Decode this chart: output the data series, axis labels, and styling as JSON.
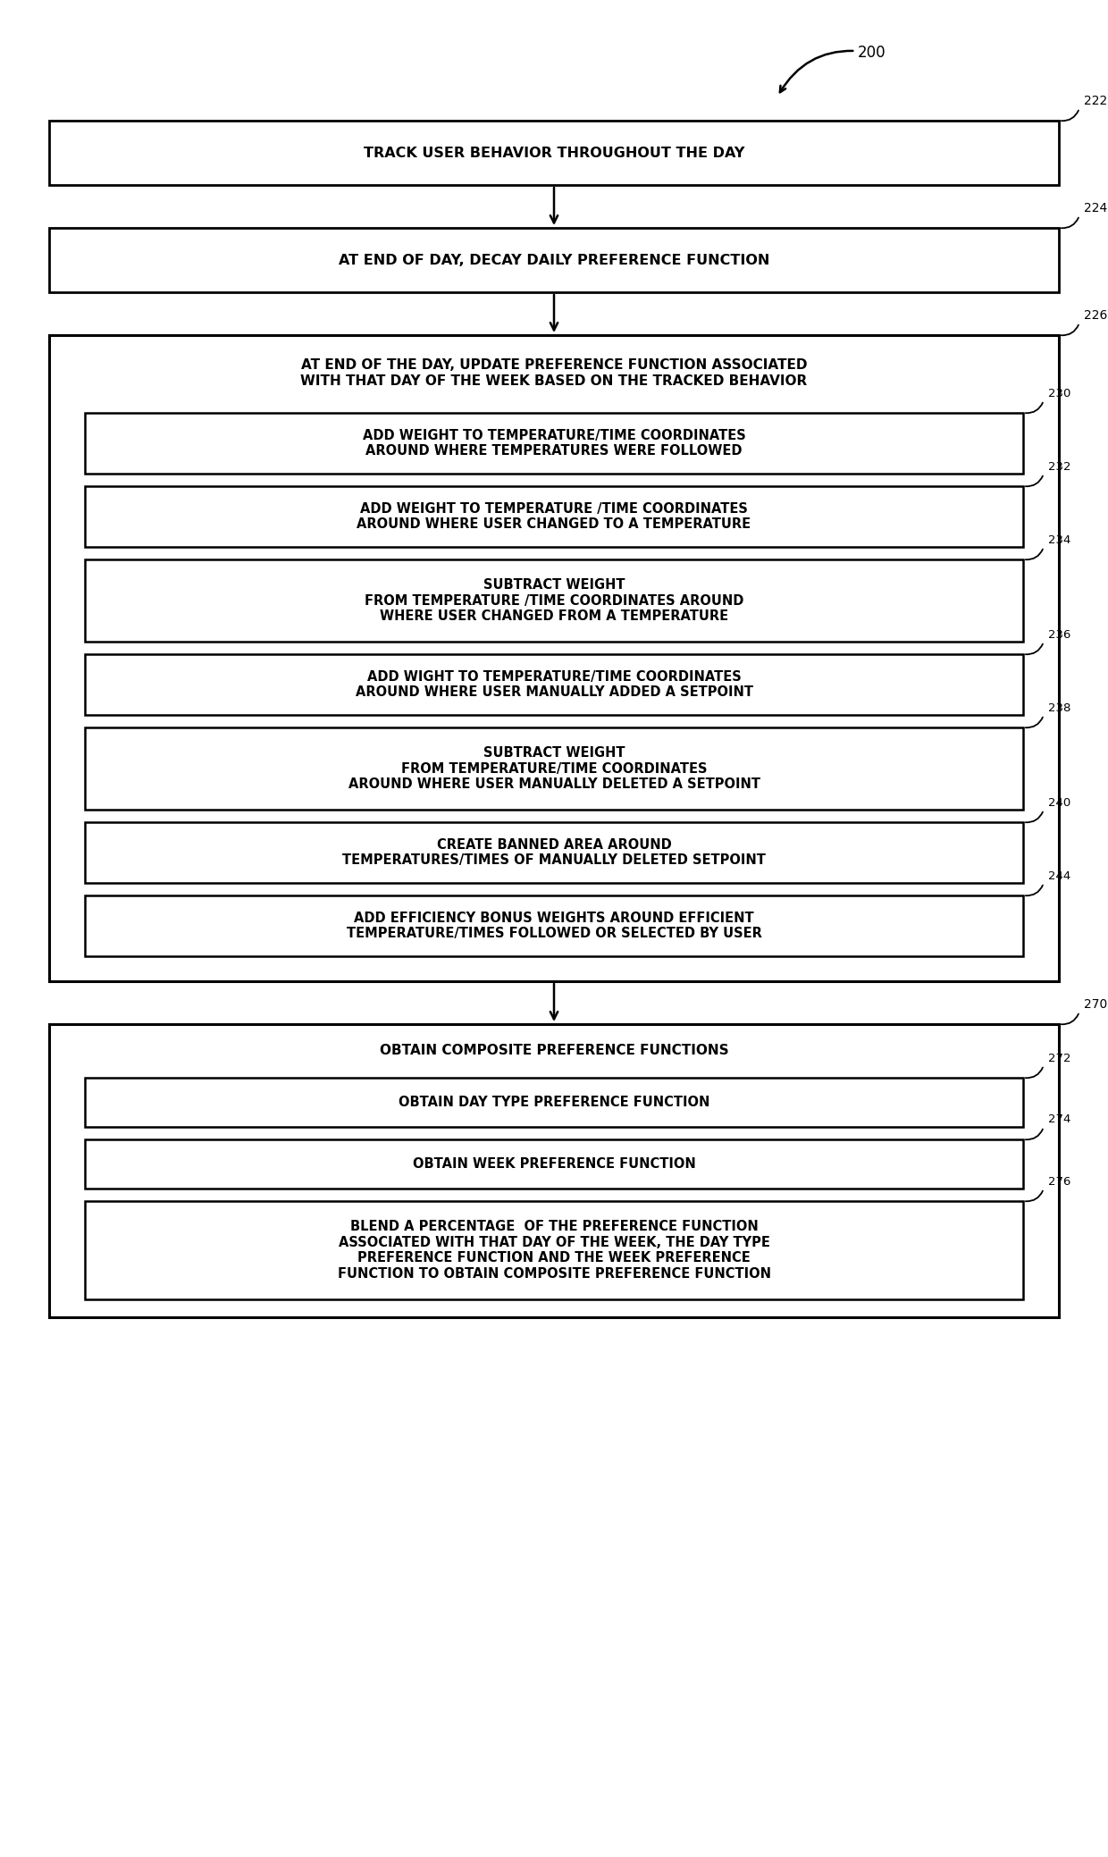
{
  "bg_color": "#ffffff",
  "text_color": "#000000",
  "fig_width": 12.4,
  "fig_height": 20.78,
  "dpi": 100,
  "label_200": "200",
  "label_222": "222",
  "label_224": "224",
  "label_226": "226",
  "label_230": "230",
  "label_232": "232",
  "label_234": "234",
  "label_236": "236",
  "label_238": "238",
  "label_240": "240",
  "label_244": "244",
  "label_270": "270",
  "label_272": "272",
  "label_274": "274",
  "label_276": "276",
  "box_222_text": "TRACK USER BEHAVIOR THROUGHOUT THE DAY",
  "box_224_text": "AT END OF DAY, DECAY DAILY PREFERENCE FUNCTION",
  "box_226_text": "AT END OF THE DAY, UPDATE PREFERENCE FUNCTION ASSOCIATED\nWITH THAT DAY OF THE WEEK BASED ON THE TRACKED BEHAVIOR",
  "box_230_text": "ADD WEIGHT TO TEMPERATURE/TIME COORDINATES\nAROUND WHERE TEMPERATURES WERE FOLLOWED",
  "box_232_text": "ADD WEIGHT TO TEMPERATURE /TIME COORDINATES\nAROUND WHERE USER CHANGED TO A TEMPERATURE",
  "box_234_text": "SUBTRACT WEIGHT\nFROM TEMPERATURE /TIME COORDINATES AROUND\nWHERE USER CHANGED FROM A TEMPERATURE",
  "box_236_text": "ADD WIGHT TO TEMPERATURE/TIME COORDINATES\nAROUND WHERE USER MANUALLY ADDED A SETPOINT",
  "box_238_text": "SUBTRACT WEIGHT\nFROM TEMPERATURE/TIME COORDINATES\nAROUND WHERE USER MANUALLY DELETED A SETPOINT",
  "box_240_text": "CREATE BANNED AREA AROUND\nTEMPERATURES/TIMES OF MANUALLY DELETED SETPOINT",
  "box_244_text": "ADD EFFICIENCY BONUS WEIGHTS AROUND EFFICIENT\nTEMPERATURE/TIMES FOLLOWED OR SELECTED BY USER",
  "box_270_text": "OBTAIN COMPOSITE PREFERENCE FUNCTIONS",
  "box_272_text": "OBTAIN DAY TYPE PREFERENCE FUNCTION",
  "box_274_text": "OBTAIN WEEK PREFERENCE FUNCTION",
  "box_276_text": "BLEND A PERCENTAGE  OF THE PREFERENCE FUNCTION\nASSOCIATED WITH THAT DAY OF THE WEEK, THE DAY TYPE\nPREFERENCE FUNCTION AND THE WEEK PREFERENCE\nFUNCTION TO OBTAIN COMPOSITE PREFERENCE FUNCTION"
}
